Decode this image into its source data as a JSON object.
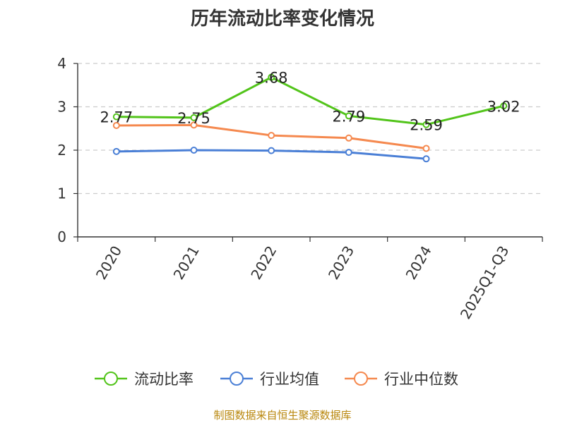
{
  "chart_data": {
    "type": "line",
    "title": "历年流动比率变化情况",
    "categories": [
      "2020",
      "2021",
      "2022",
      "2023",
      "2024",
      "2025Q1-Q3"
    ],
    "series": [
      {
        "name": "流动比率",
        "color": "#52c41a",
        "values": [
          2.77,
          2.75,
          3.68,
          2.79,
          2.59,
          3.02
        ],
        "show_labels": true
      },
      {
        "name": "行业均值",
        "color": "#4a7fd6",
        "values": [
          1.97,
          2.0,
          1.99,
          1.95,
          1.8,
          null
        ],
        "show_labels": false
      },
      {
        "name": "行业中位数",
        "color": "#f5894f",
        "values": [
          2.57,
          2.58,
          2.34,
          2.28,
          2.04,
          null
        ],
        "show_labels": false
      }
    ],
    "y_ticks": [
      "0",
      "1",
      "2",
      "3",
      "4"
    ],
    "ylim": [
      0,
      4
    ],
    "grid": true,
    "legend_position": "bottom",
    "source_note": "制图数据来自恒生聚源数据库"
  }
}
